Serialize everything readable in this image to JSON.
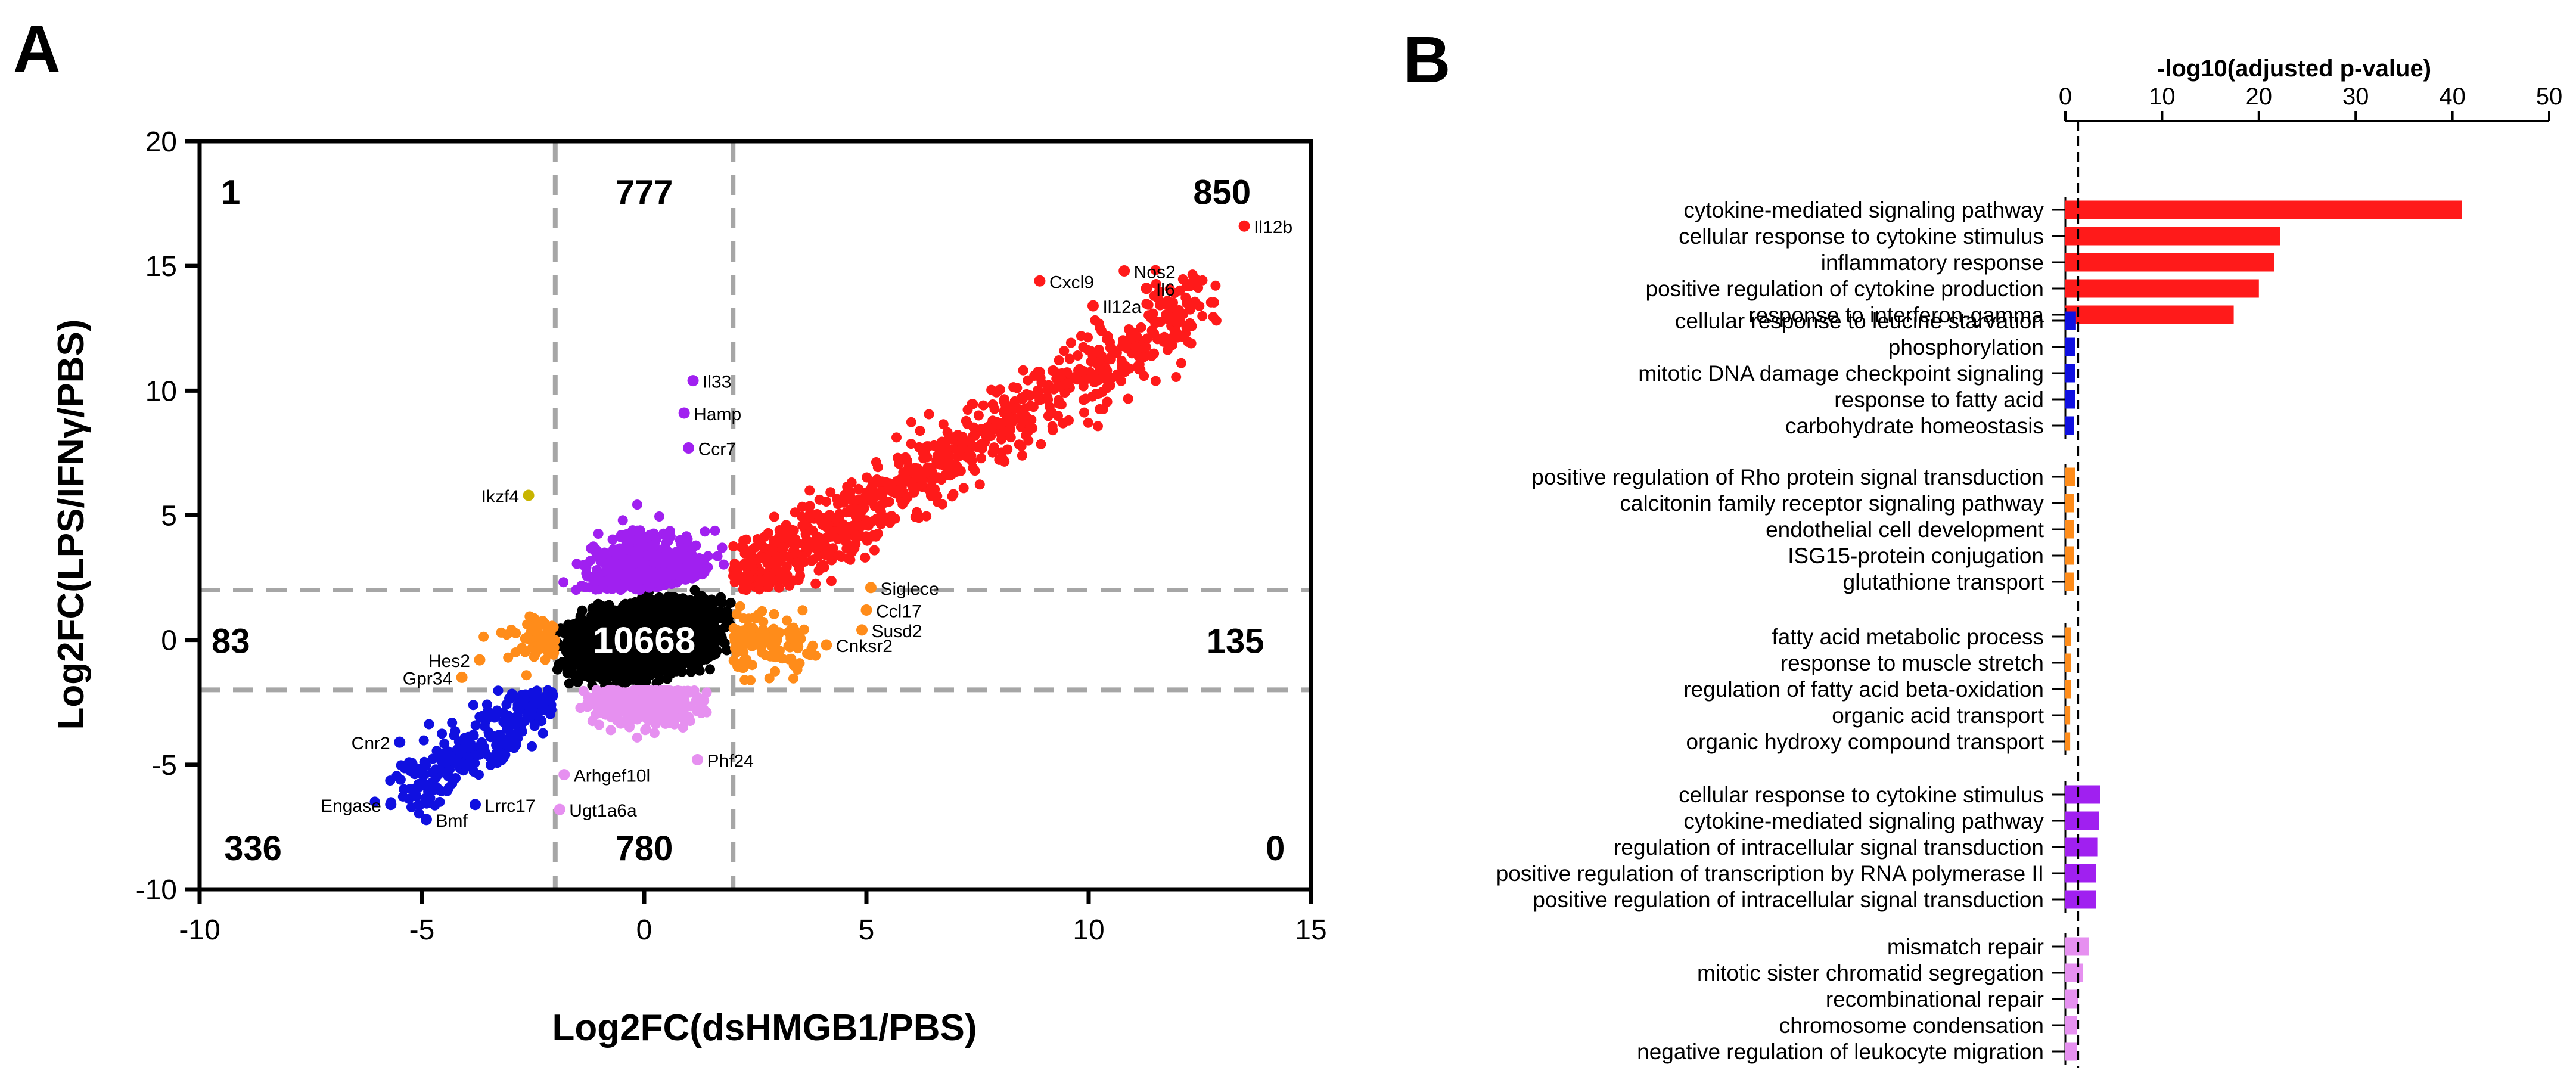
{
  "panel_labels": {
    "a": "A",
    "b": "B"
  },
  "colors": {
    "up_both": "#ff1a1a",
    "up_lps_only": "#a020f0",
    "down_lps_only": "#e690f0",
    "down_both": "#1010e0",
    "dshmgb1_only": "#ff8c1a",
    "ns": "#000000",
    "opposite": "#c8b400",
    "guide": "#a6a6a6"
  },
  "chart_data": [
    {
      "type": "scatter",
      "title": "",
      "xlabel": "Log2FC(dsHMGB1/PBS)",
      "ylabel": "Log2FC(LPS/IFNγ/PBS)",
      "xlim": [
        -10,
        15
      ],
      "ylim": [
        -10,
        20
      ],
      "x_ticks": [
        "-10",
        "-5",
        "0",
        "5",
        "10",
        "15"
      ],
      "y_ticks": [
        "-10",
        "-5",
        "0",
        "5",
        "10",
        "15",
        "20"
      ],
      "thresholds": {
        "x": [
          -2,
          2
        ],
        "y": [
          -2,
          2
        ]
      },
      "region_counts": [
        {
          "label": "1",
          "x": -9.3,
          "y": 18
        },
        {
          "label": "777",
          "x": 0,
          "y": 18
        },
        {
          "label": "850",
          "x": 13,
          "y": 18
        },
        {
          "label": "83",
          "x": -9.3,
          "y": 0
        },
        {
          "label": "10668",
          "x": 0,
          "y": 0
        },
        {
          "label": "135",
          "x": 13.3,
          "y": 0
        },
        {
          "label": "336",
          "x": -8.8,
          "y": -8.3
        },
        {
          "label": "780",
          "x": 0,
          "y": -8.3
        },
        {
          "label": "0",
          "x": 14.2,
          "y": -8.3
        }
      ],
      "labeled_genes": [
        {
          "gene": "Il12b",
          "x": 13.5,
          "y": 16.6,
          "group": "up_both",
          "side": "right"
        },
        {
          "gene": "Nos2",
          "x": 10.8,
          "y": 14.8,
          "group": "up_both",
          "side": "right"
        },
        {
          "gene": "Il6",
          "x": 11.3,
          "y": 14.1,
          "group": "up_both",
          "side": "right"
        },
        {
          "gene": "Cxcl9",
          "x": 8.9,
          "y": 14.4,
          "group": "up_both",
          "side": "right"
        },
        {
          "gene": "Il12a",
          "x": 10.1,
          "y": 13.4,
          "group": "up_both",
          "side": "right"
        },
        {
          "gene": "Il33",
          "x": 1.1,
          "y": 10.4,
          "group": "up_lps_only",
          "side": "right"
        },
        {
          "gene": "Hamp",
          "x": 0.9,
          "y": 9.1,
          "group": "up_lps_only",
          "side": "right"
        },
        {
          "gene": "Ccr7",
          "x": 1.0,
          "y": 7.7,
          "group": "up_lps_only",
          "side": "right"
        },
        {
          "gene": "Ikzf4",
          "x": -2.6,
          "y": 5.8,
          "group": "opposite",
          "side": "left"
        },
        {
          "gene": "Siglece",
          "x": 5.1,
          "y": 2.1,
          "group": "dshmgb1_only",
          "side": "right"
        },
        {
          "gene": "Ccl17",
          "x": 5.0,
          "y": 1.2,
          "group": "dshmgb1_only",
          "side": "right"
        },
        {
          "gene": "Susd2",
          "x": 4.9,
          "y": 0.4,
          "group": "dshmgb1_only",
          "side": "right"
        },
        {
          "gene": "Cnksr2",
          "x": 4.1,
          "y": -0.2,
          "group": "dshmgb1_only",
          "side": "right"
        },
        {
          "gene": "Hes2",
          "x": -3.7,
          "y": -0.8,
          "group": "dshmgb1_only",
          "side": "left"
        },
        {
          "gene": "Gpr34",
          "x": -4.1,
          "y": -1.5,
          "group": "dshmgb1_only",
          "side": "left"
        },
        {
          "gene": "Cnr2",
          "x": -5.5,
          "y": -4.1,
          "group": "down_both",
          "side": "left"
        },
        {
          "gene": "Lrrc17",
          "x": -3.8,
          "y": -6.6,
          "group": "down_both",
          "side": "right"
        },
        {
          "gene": "Engase",
          "x": -5.7,
          "y": -6.6,
          "group": "down_both",
          "side": "left"
        },
        {
          "gene": "Bmf",
          "x": -4.9,
          "y": -7.2,
          "group": "down_both",
          "side": "right"
        },
        {
          "gene": "Phf24",
          "x": 1.2,
          "y": -4.8,
          "group": "down_lps_only",
          "side": "right"
        },
        {
          "gene": "Arhgef10l",
          "x": -1.8,
          "y": -5.4,
          "group": "down_lps_only",
          "side": "right"
        },
        {
          "gene": "Ugt1a6a",
          "x": -1.9,
          "y": -6.8,
          "group": "down_lps_only",
          "side": "right"
        }
      ]
    },
    {
      "type": "bar",
      "orientation": "horizontal",
      "title": "-log10(adjusted p-value)",
      "xlim": [
        0,
        50
      ],
      "x_ticks": [
        "0",
        "10",
        "20",
        "30",
        "40",
        "50"
      ],
      "threshold": 1.3,
      "groups": [
        {
          "color_key": "up_both",
          "terms": [
            {
              "term": "cytokine-mediated signaling pathway",
              "value": 41.0
            },
            {
              "term": "cellular response to cytokine stimulus",
              "value": 22.2
            },
            {
              "term": "inflammatory response",
              "value": 21.6
            },
            {
              "term": "positive regulation of cytokine production",
              "value": 20.0
            },
            {
              "term": "response to interferon-gamma",
              "value": 17.4
            }
          ]
        },
        {
          "color_key": "down_both",
          "terms": [
            {
              "term": "cellular response to leucine starvation",
              "value": 1.1
            },
            {
              "term": "phosphorylation",
              "value": 1.0
            },
            {
              "term": "mitotic DNA damage checkpoint signaling",
              "value": 1.0
            },
            {
              "term": "response to fatty acid",
              "value": 1.0
            },
            {
              "term": "carbohydrate homeostasis",
              "value": 0.9
            }
          ]
        },
        {
          "color_key": "dshmgb1_only",
          "terms": [
            {
              "term": "positive regulation of Rho protein signal transduction",
              "value": 1.0
            },
            {
              "term": "calcitonin family receptor signaling pathway",
              "value": 0.9
            },
            {
              "term": "endothelial cell development",
              "value": 0.9
            },
            {
              "term": "ISG15-protein conjugation",
              "value": 0.9
            },
            {
              "term": "glutathione transport",
              "value": 0.9
            }
          ]
        },
        {
          "color_key": "dshmgb1_only",
          "terms": [
            {
              "term": "fatty acid metabolic process",
              "value": 0.6
            },
            {
              "term": "response to muscle stretch",
              "value": 0.6
            },
            {
              "term": "regulation of fatty acid beta-oxidation",
              "value": 0.6
            },
            {
              "term": "organic acid transport",
              "value": 0.5
            },
            {
              "term": "organic hydroxy compound transport",
              "value": 0.5
            }
          ]
        },
        {
          "color_key": "up_lps_only",
          "terms": [
            {
              "term": "cellular response to cytokine stimulus",
              "value": 3.6
            },
            {
              "term": "cytokine-mediated signaling pathway",
              "value": 3.5
            },
            {
              "term": "regulation of intracellular signal transduction",
              "value": 3.3
            },
            {
              "term": "positive regulation of transcription by RNA polymerase II",
              "value": 3.2
            },
            {
              "term": "positive regulation of intracellular signal transduction",
              "value": 3.2
            }
          ]
        },
        {
          "color_key": "down_lps_only",
          "terms": [
            {
              "term": "mismatch repair",
              "value": 2.4
            },
            {
              "term": "mitotic sister chromatid segregation",
              "value": 1.8
            },
            {
              "term": "recombinational repair",
              "value": 1.3
            },
            {
              "term": "chromosome condensation",
              "value": 1.2
            },
            {
              "term": "negative regulation of leukocyte migration",
              "value": 1.2
            }
          ]
        }
      ]
    }
  ]
}
